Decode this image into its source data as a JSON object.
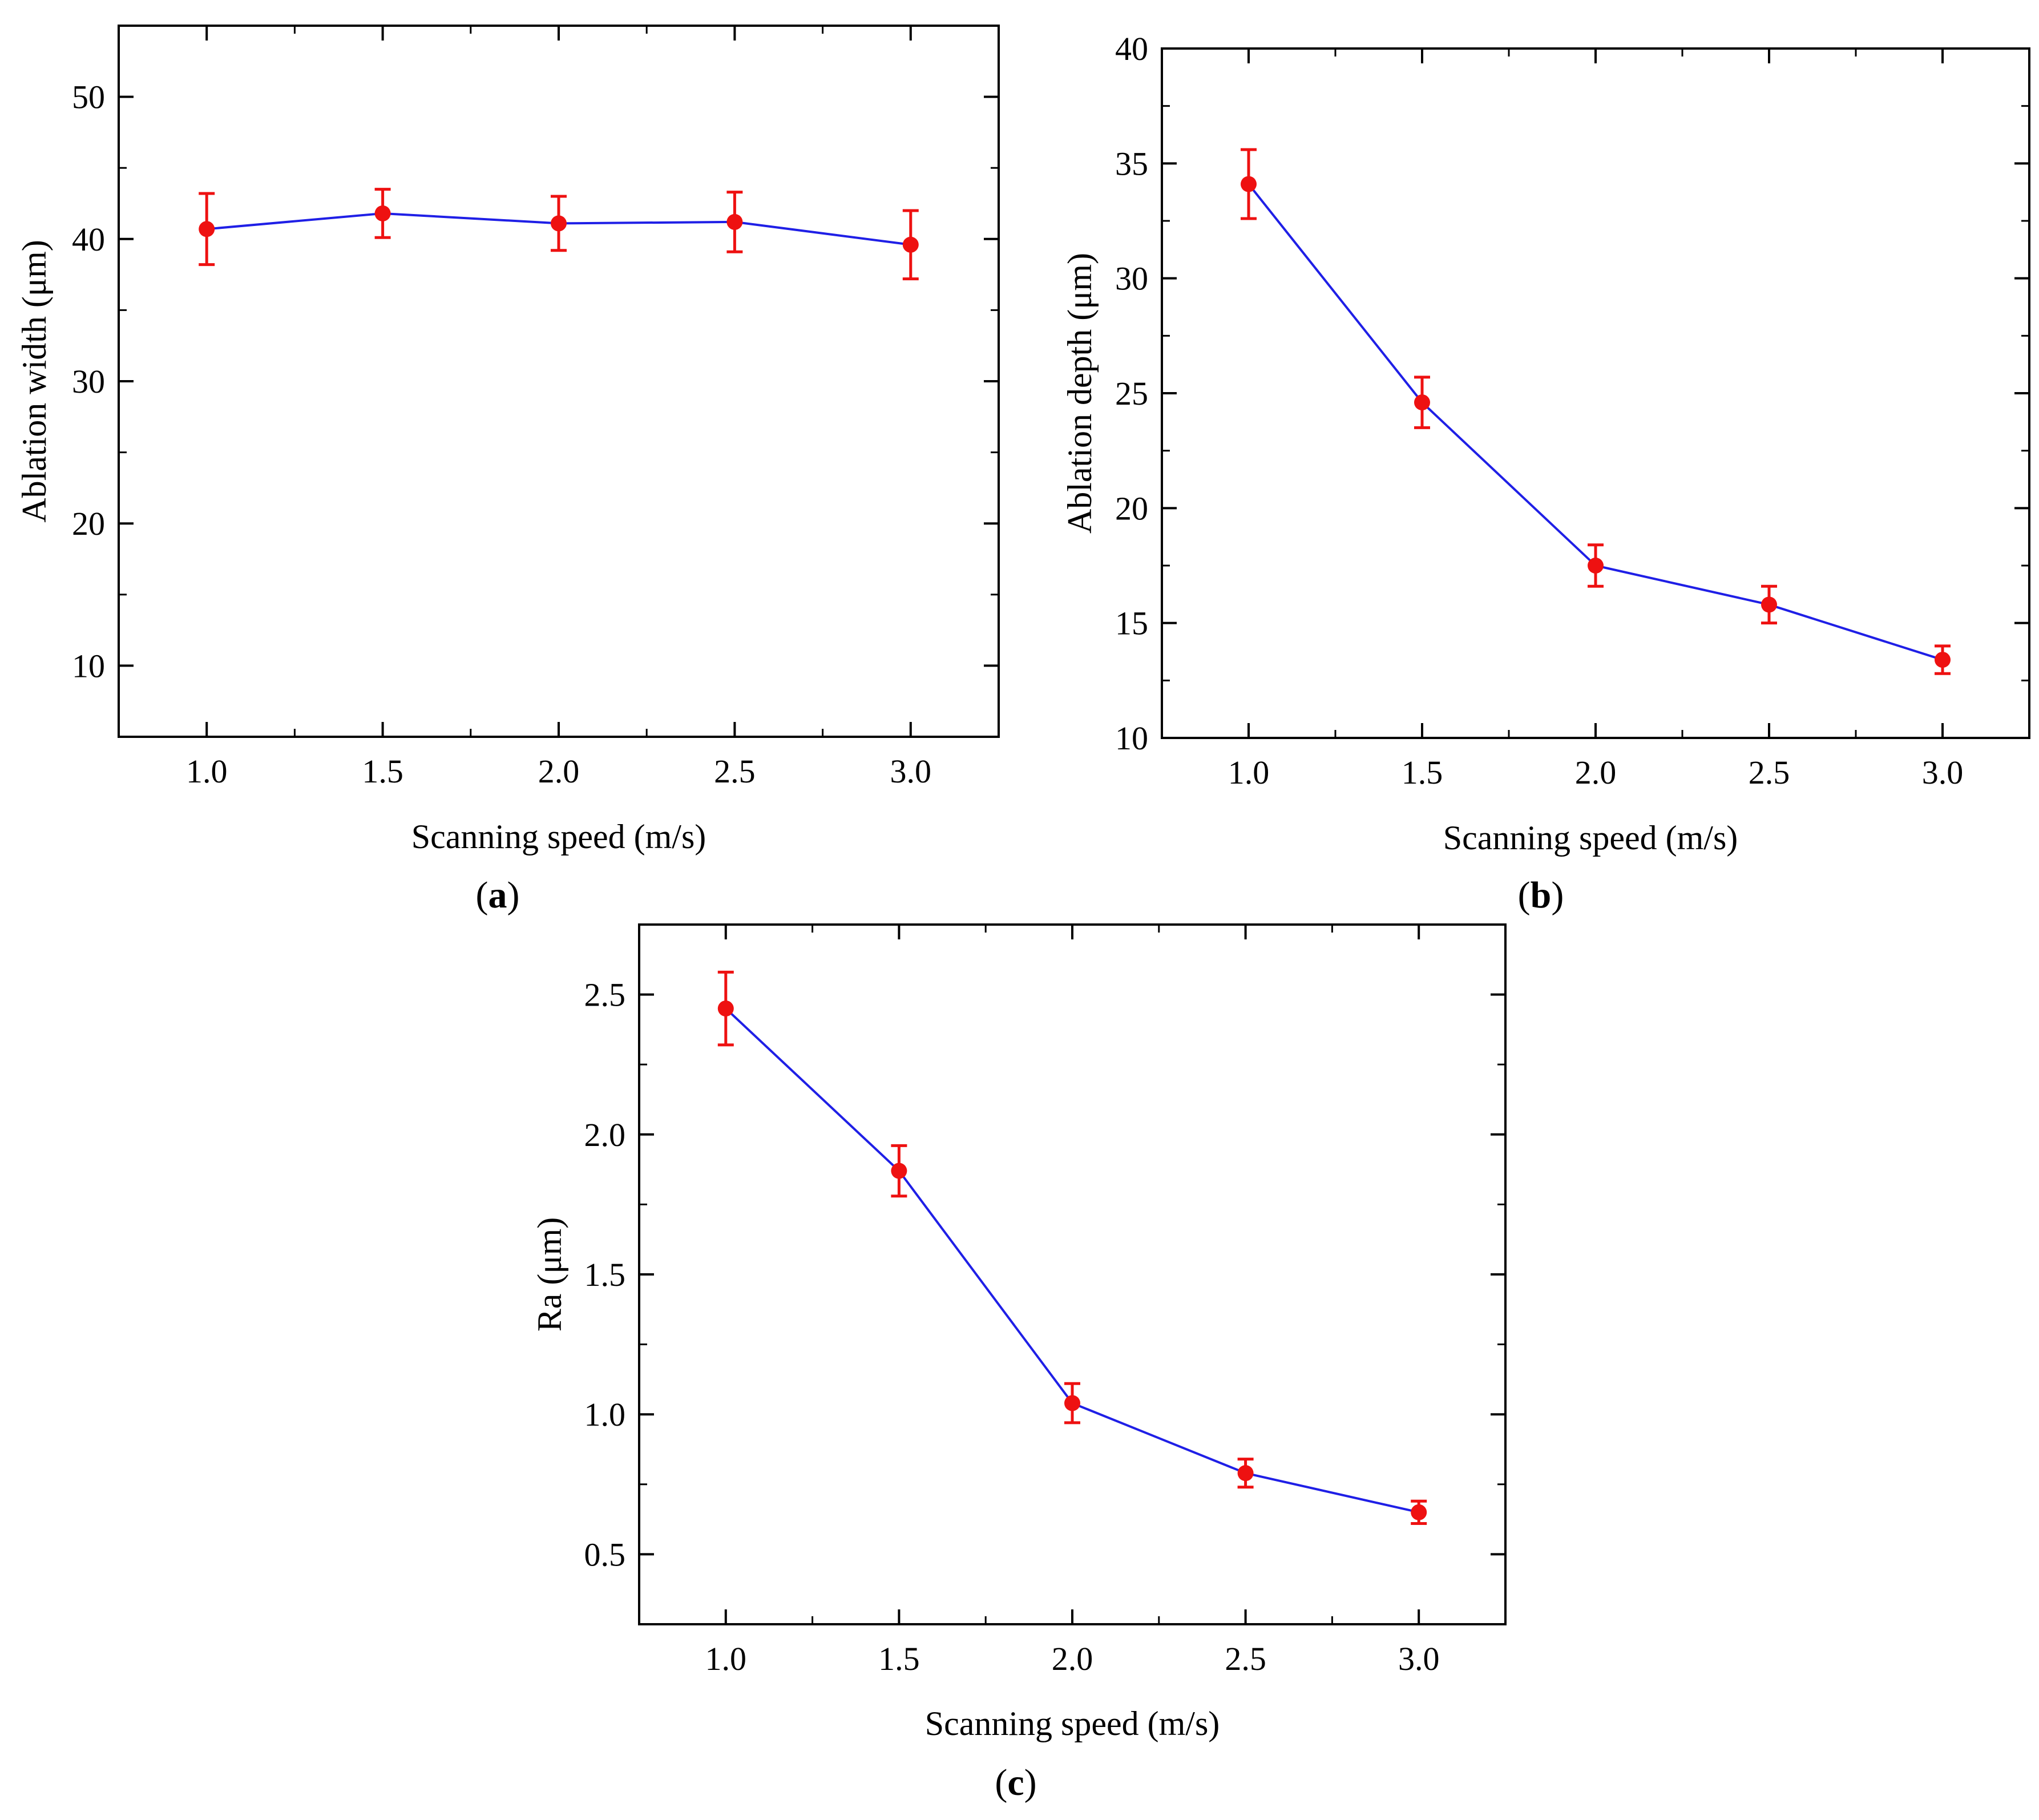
{
  "colors": {
    "line": "#1f1fe6",
    "marker": "#ee1111",
    "axis": "#000000"
  },
  "chart_data": [
    {
      "id": "a",
      "type": "line",
      "panel_label": "a",
      "title": "",
      "xlabel": "Scanning speed (m/s)",
      "ylabel": "Ablation width (μm)",
      "xlim": [
        0.75,
        3.25
      ],
      "ylim": [
        5,
        55
      ],
      "xticks": [
        1.0,
        1.5,
        2.0,
        2.5,
        3.0
      ],
      "xtick_labels": [
        "1.0",
        "1.5",
        "2.0",
        "2.5",
        "3.0"
      ],
      "yticks": [
        10,
        20,
        30,
        40,
        50
      ],
      "ytick_labels": [
        "10",
        "20",
        "30",
        "40",
        "50"
      ],
      "grid": false,
      "series": [
        {
          "name": "Ablation width",
          "x": [
            1.0,
            1.5,
            2.0,
            2.5,
            3.0
          ],
          "y": [
            40.7,
            41.8,
            41.1,
            41.2,
            39.6
          ],
          "err": [
            2.5,
            1.7,
            1.9,
            2.1,
            2.4
          ]
        }
      ]
    },
    {
      "id": "b",
      "type": "line",
      "panel_label": "b",
      "title": "",
      "xlabel": "Scanning speed (m/s)",
      "ylabel": "Ablation depth (μm)",
      "xlim": [
        0.75,
        3.25
      ],
      "ylim": [
        10,
        40
      ],
      "xticks": [
        1.0,
        1.5,
        2.0,
        2.5,
        3.0
      ],
      "xtick_labels": [
        "1.0",
        "1.5",
        "2.0",
        "2.5",
        "3.0"
      ],
      "yticks": [
        10,
        15,
        20,
        25,
        30,
        35,
        40
      ],
      "ytick_labels": [
        "10",
        "15",
        "20",
        "25",
        "30",
        "35",
        "40"
      ],
      "grid": false,
      "series": [
        {
          "name": "Ablation depth",
          "x": [
            1.0,
            1.5,
            2.0,
            2.5,
            3.0
          ],
          "y": [
            34.1,
            24.6,
            17.5,
            15.8,
            13.4
          ],
          "err": [
            1.5,
            1.1,
            0.9,
            0.8,
            0.6
          ]
        }
      ]
    },
    {
      "id": "c",
      "type": "line",
      "panel_label": "c",
      "title": "",
      "xlabel": "Scanning speed (m/s)",
      "ylabel": "Ra (μm)",
      "xlim": [
        0.75,
        3.25
      ],
      "ylim": [
        0.25,
        2.75
      ],
      "xticks": [
        1.0,
        1.5,
        2.0,
        2.5,
        3.0
      ],
      "xtick_labels": [
        "1.0",
        "1.5",
        "2.0",
        "2.5",
        "3.0"
      ],
      "yticks": [
        0.5,
        1.0,
        1.5,
        2.0,
        2.5
      ],
      "ytick_labels": [
        "0.5",
        "1.0",
        "1.5",
        "2.0",
        "2.5"
      ],
      "grid": false,
      "series": [
        {
          "name": "Ra",
          "x": [
            1.0,
            1.5,
            2.0,
            2.5,
            3.0
          ],
          "y": [
            2.45,
            1.87,
            1.04,
            0.79,
            0.65
          ],
          "err": [
            0.13,
            0.09,
            0.07,
            0.05,
            0.04
          ]
        }
      ]
    }
  ]
}
